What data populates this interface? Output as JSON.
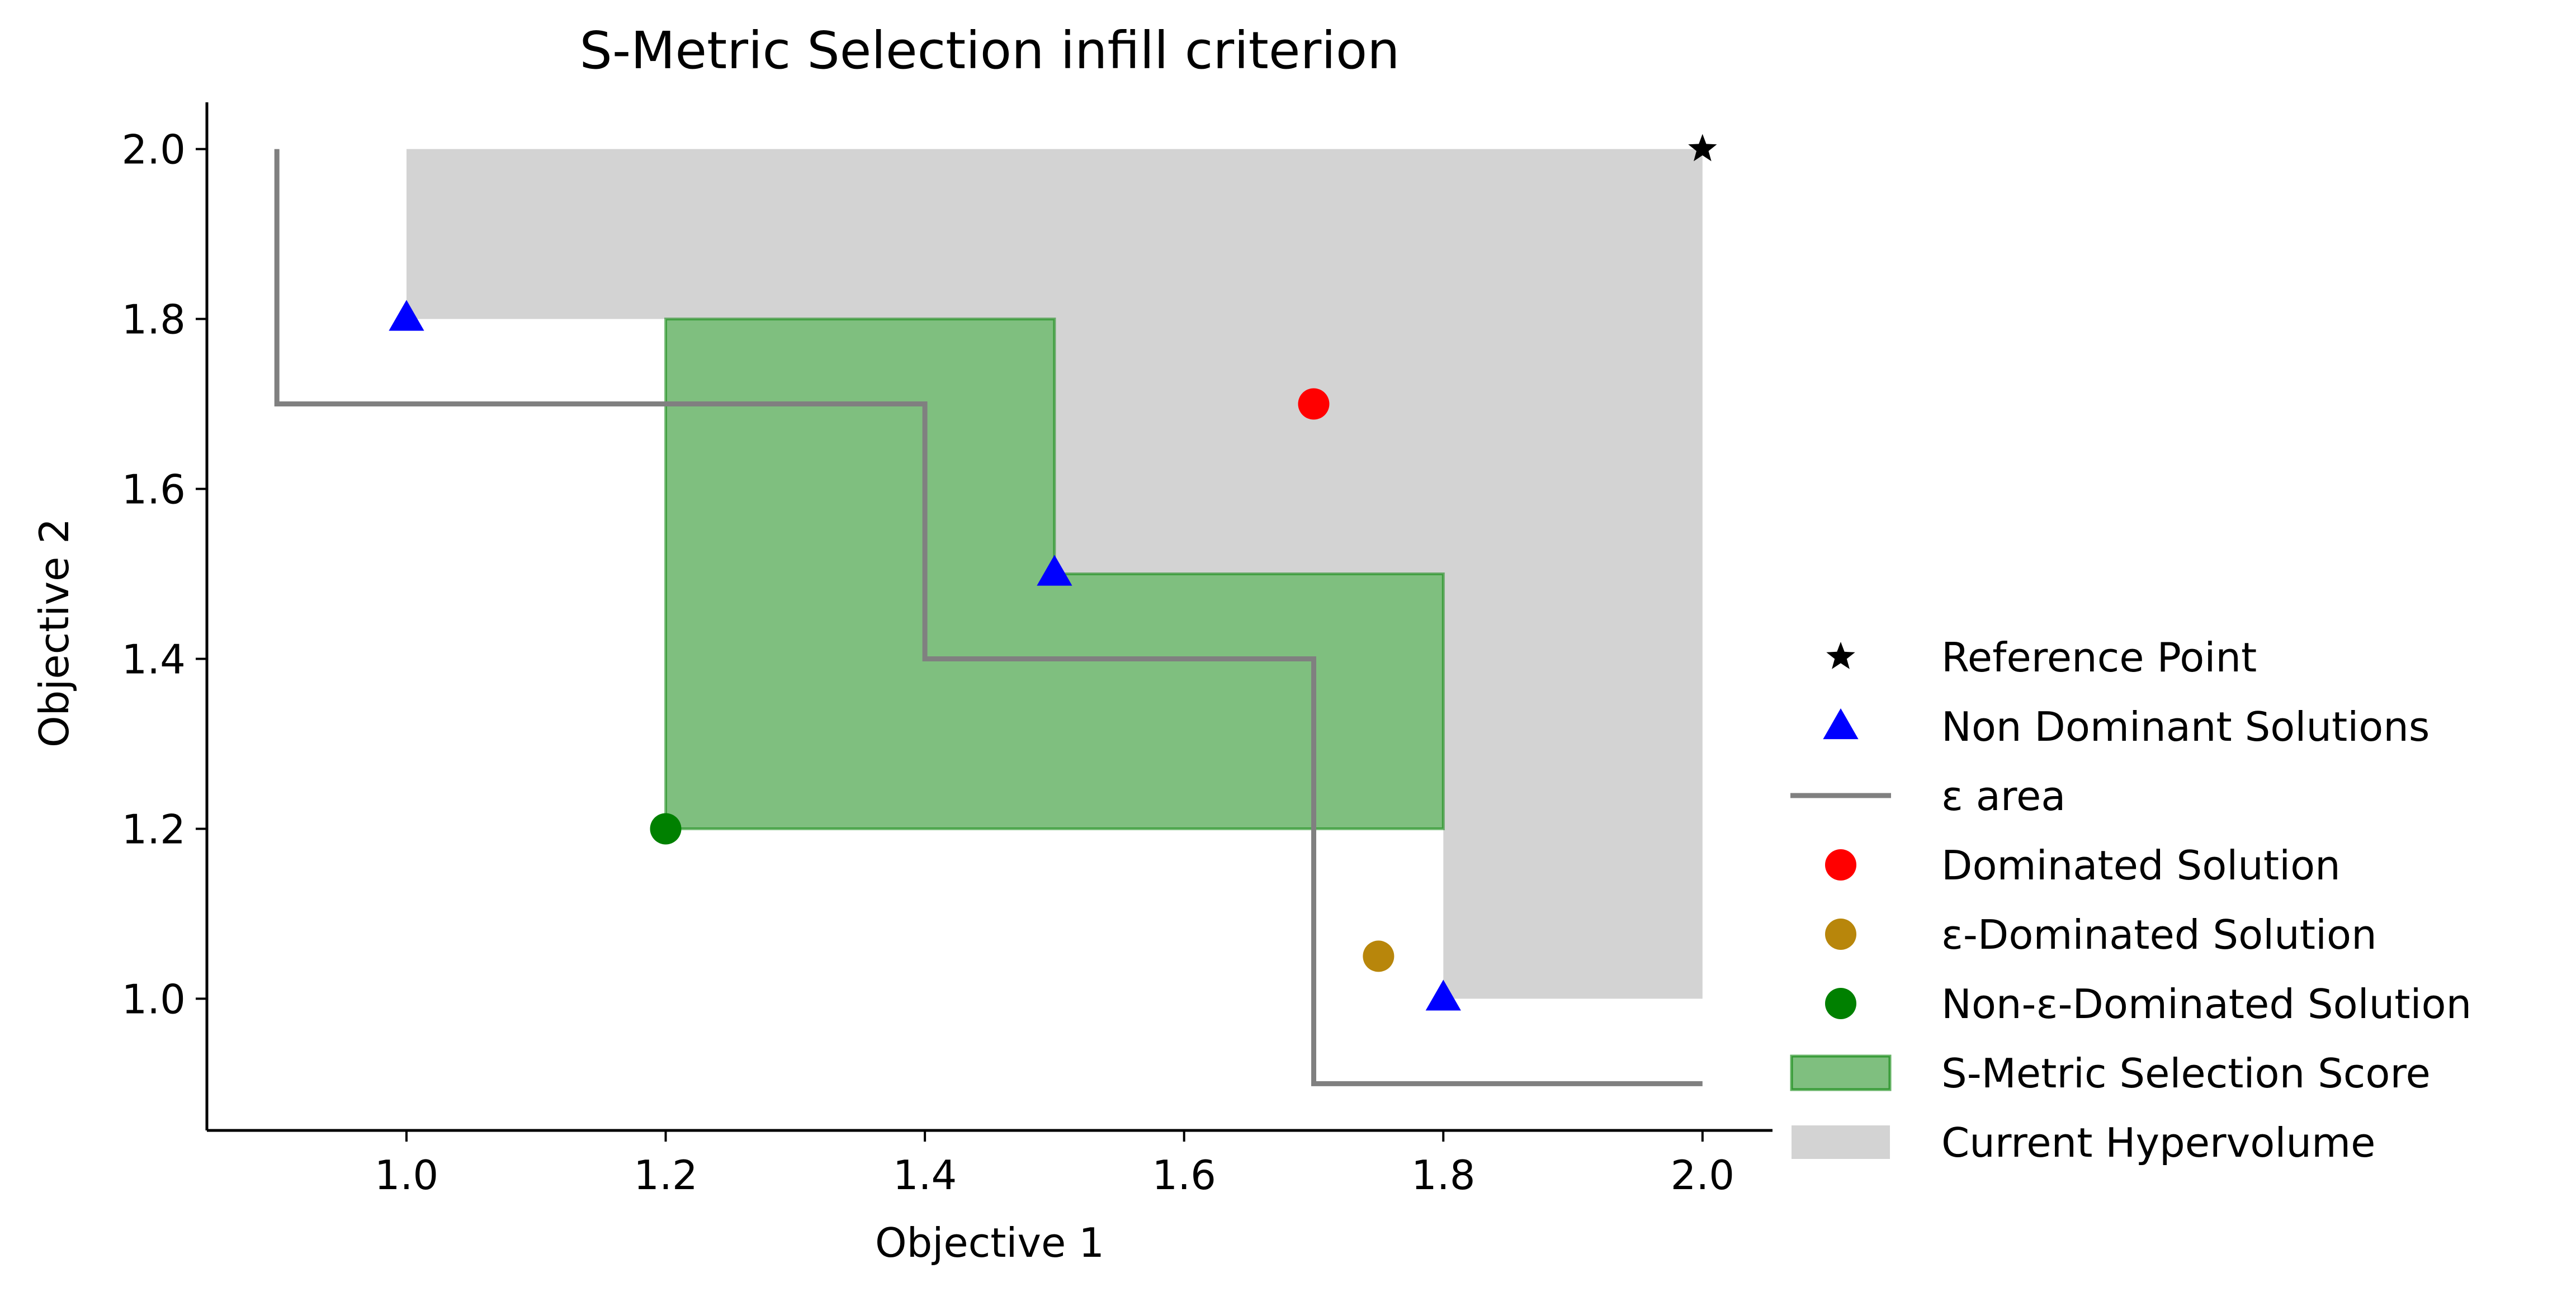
{
  "chart_data": {
    "type": "scatter",
    "title": "S-Metric Selection infill criterion",
    "xlabel": "Objective 1",
    "ylabel": "Objective 2",
    "xlim": [
      0.846,
      2.054
    ],
    "ylim": [
      0.845,
      2.055
    ],
    "xticks": [
      1.0,
      1.2,
      1.4,
      1.6,
      1.8,
      2.0
    ],
    "xtick_labels": [
      "1.0",
      "1.2",
      "1.4",
      "1.6",
      "1.8",
      "2.0"
    ],
    "yticks": [
      1.0,
      1.2,
      1.4,
      1.6,
      1.8,
      2.0
    ],
    "ytick_labels": [
      "1.0",
      "1.2",
      "1.4",
      "1.6",
      "1.8",
      "2.0"
    ],
    "grid": false,
    "legend_position": "right",
    "hypervolume_polygon": [
      [
        1.0,
        2.0
      ],
      [
        2.0,
        2.0
      ],
      [
        2.0,
        1.0
      ],
      [
        1.8,
        1.0
      ],
      [
        1.8,
        1.5
      ],
      [
        1.5,
        1.5
      ],
      [
        1.5,
        1.8
      ],
      [
        1.0,
        1.8
      ]
    ],
    "smetric_polygon": [
      [
        1.2,
        1.2
      ],
      [
        1.8,
        1.2
      ],
      [
        1.8,
        1.5
      ],
      [
        1.5,
        1.5
      ],
      [
        1.5,
        1.8
      ],
      [
        1.2,
        1.8
      ]
    ],
    "epsilon_line": [
      [
        0.9,
        2.0
      ],
      [
        0.9,
        1.7
      ],
      [
        1.4,
        1.7
      ],
      [
        1.4,
        1.4
      ],
      [
        1.7,
        1.4
      ],
      [
        1.7,
        0.9
      ],
      [
        2.0,
        0.9
      ]
    ],
    "reference_point": [
      2.0,
      2.0
    ],
    "non_dominant_solutions": [
      [
        1.0,
        1.8
      ],
      [
        1.5,
        1.5
      ],
      [
        1.8,
        1.0
      ]
    ],
    "dominated_solution": [
      1.7,
      1.7
    ],
    "epsilon_dominated_solution": [
      1.75,
      1.05
    ],
    "non_epsilon_dominated_solution": [
      1.2,
      1.2
    ],
    "legend": [
      "Reference Point",
      "Non Dominant Solutions",
      "ε area",
      "Dominated Solution",
      "ε-Dominated Solution",
      "Non-ε-Dominated Solution",
      "S-Metric Selection Score",
      "Current Hypervolume"
    ],
    "colors": {
      "hypervolume": "#d3d3d3",
      "smetric_fill": "#008000",
      "epsilon_line": "#808080",
      "reference": "#000000",
      "non_dominant": "#0000ff",
      "dominated": "#ff0000",
      "epsilon_dominated": "#b8860b",
      "non_epsilon_dominated": "#008000"
    }
  }
}
